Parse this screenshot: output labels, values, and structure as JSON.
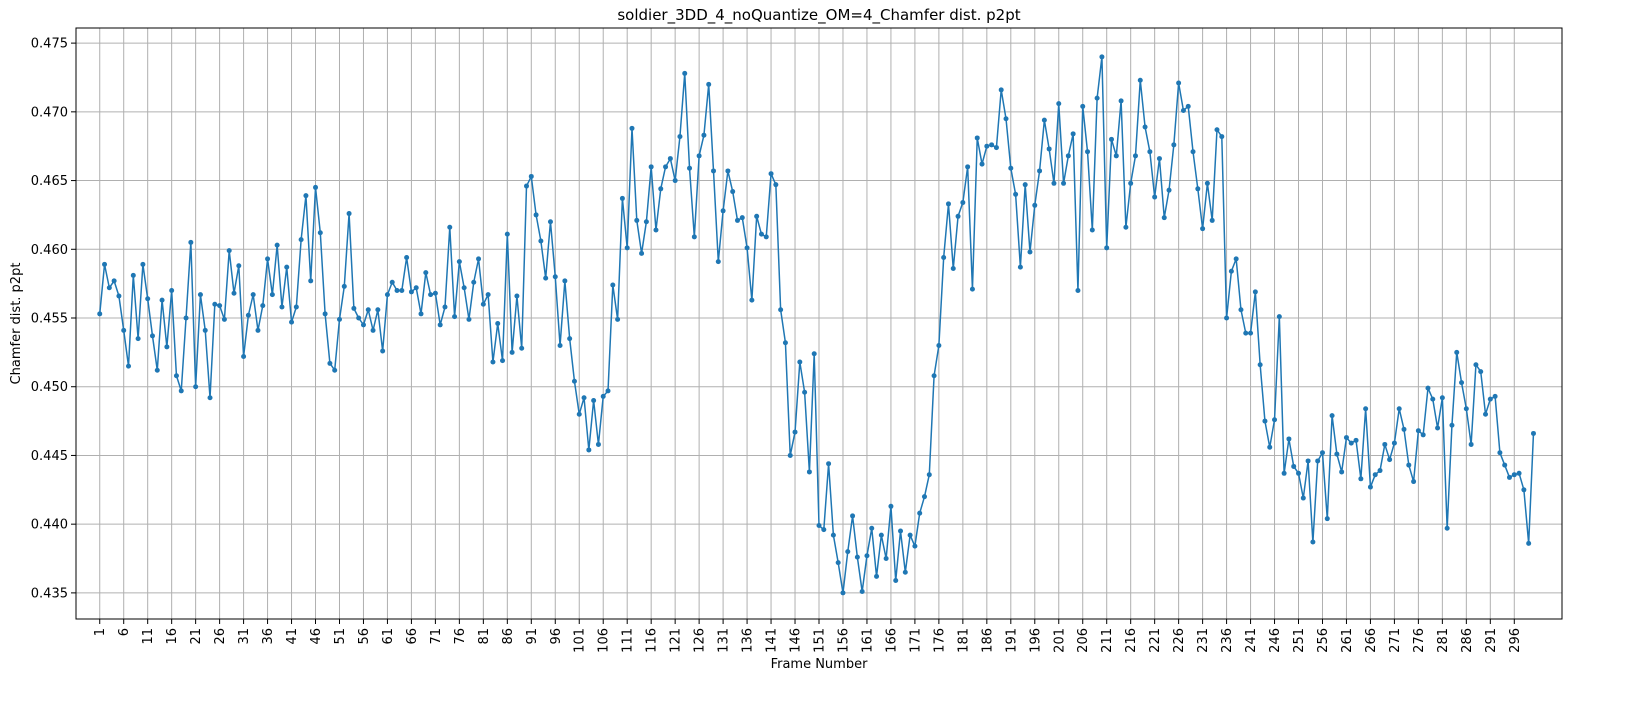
{
  "chart_data": {
    "type": "line",
    "title": "soldier_3DD_4_noQuantize_OM=4_Chamfer dist. p2pt",
    "xlabel": "Frame Number",
    "ylabel": "Chamfer dist. p2pt",
    "x_start": 1,
    "x_ticks": [
      1,
      6,
      11,
      16,
      21,
      26,
      31,
      36,
      41,
      46,
      51,
      56,
      61,
      66,
      71,
      76,
      81,
      86,
      91,
      96,
      101,
      106,
      111,
      116,
      121,
      126,
      131,
      136,
      141,
      146,
      151,
      156,
      161,
      166,
      171,
      176,
      181,
      186,
      191,
      196,
      201,
      206,
      211,
      216,
      221,
      226,
      231,
      236,
      241,
      246,
      251,
      256,
      261,
      266,
      271,
      276,
      281,
      286,
      291,
      296
    ],
    "xlim": [
      -3.95,
      305.95
    ],
    "y_ticks": [
      "0.435",
      "0.440",
      "0.445",
      "0.450",
      "0.455",
      "0.460",
      "0.465",
      "0.470",
      "0.475"
    ],
    "ylim": [
      0.4331,
      0.4761
    ],
    "grid": true,
    "line_color": "#1f77b4",
    "marker": "circle",
    "series": [
      {
        "values": [
          0.4553,
          0.4589,
          0.4572,
          0.4577,
          0.4566,
          0.4541,
          0.4515,
          0.4581,
          0.4535,
          0.4589,
          0.4564,
          0.4537,
          0.4512,
          0.4563,
          0.4529,
          0.457,
          0.4508,
          0.4497,
          0.455,
          0.4605,
          0.45,
          0.4567,
          0.4541,
          0.4492,
          0.456,
          0.4559,
          0.4549,
          0.4599,
          0.4568,
          0.4588,
          0.4522,
          0.4552,
          0.4567,
          0.4541,
          0.4559,
          0.4593,
          0.4567,
          0.4603,
          0.4558,
          0.4587,
          0.4547,
          0.4558,
          0.4607,
          0.4639,
          0.4577,
          0.4645,
          0.4612,
          0.4553,
          0.4517,
          0.4512,
          0.4549,
          0.4573,
          0.4626,
          0.4557,
          0.455,
          0.4545,
          0.4556,
          0.4541,
          0.4556,
          0.4526,
          0.4567,
          0.4576,
          0.457,
          0.457,
          0.4594,
          0.4569,
          0.4572,
          0.4553,
          0.4583,
          0.4567,
          0.4568,
          0.4545,
          0.4558,
          0.4616,
          0.4551,
          0.4591,
          0.4572,
          0.4549,
          0.4576,
          0.4593,
          0.456,
          0.4567,
          0.4518,
          0.4546,
          0.4519,
          0.4611,
          0.4525,
          0.4566,
          0.4528,
          0.4646,
          0.4653,
          0.4625,
          0.4606,
          0.4579,
          0.462,
          0.458,
          0.453,
          0.4577,
          0.4535,
          0.4504,
          0.448,
          0.4492,
          0.4454,
          0.449,
          0.4458,
          0.4493,
          0.4497,
          0.4574,
          0.4549,
          0.4637,
          0.4601,
          0.4688,
          0.4621,
          0.4597,
          0.462,
          0.466,
          0.4614,
          0.4644,
          0.466,
          0.4666,
          0.465,
          0.4682,
          0.4728,
          0.4659,
          0.4609,
          0.4668,
          0.4683,
          0.472,
          0.4657,
          0.4591,
          0.4628,
          0.4657,
          0.4642,
          0.4621,
          0.4623,
          0.4601,
          0.4563,
          0.4624,
          0.4611,
          0.4609,
          0.4655,
          0.4647,
          0.4556,
          0.4532,
          0.445,
          0.4467,
          0.4518,
          0.4496,
          0.4438,
          0.4524,
          0.4399,
          0.4396,
          0.4444,
          0.4392,
          0.4372,
          0.435,
          0.438,
          0.4406,
          0.4376,
          0.4351,
          0.4377,
          0.4397,
          0.4362,
          0.4392,
          0.4375,
          0.4413,
          0.4359,
          0.4395,
          0.4365,
          0.4392,
          0.4384,
          0.4408,
          0.442,
          0.4436,
          0.4508,
          0.453,
          0.4594,
          0.4633,
          0.4586,
          0.4624,
          0.4634,
          0.466,
          0.4571,
          0.4681,
          0.4662,
          0.4675,
          0.4676,
          0.4674,
          0.4716,
          0.4695,
          0.4659,
          0.464,
          0.4587,
          0.4647,
          0.4598,
          0.4632,
          0.4657,
          0.4694,
          0.4673,
          0.4648,
          0.4706,
          0.4648,
          0.4668,
          0.4684,
          0.457,
          0.4704,
          0.4671,
          0.4614,
          0.471,
          0.474,
          0.4601,
          0.468,
          0.4668,
          0.4708,
          0.4616,
          0.4648,
          0.4668,
          0.4723,
          0.4689,
          0.4671,
          0.4638,
          0.4666,
          0.4623,
          0.4643,
          0.4676,
          0.4721,
          0.4701,
          0.4704,
          0.4671,
          0.4644,
          0.4615,
          0.4648,
          0.4621,
          0.4687,
          0.4682,
          0.455,
          0.4584,
          0.4593,
          0.4556,
          0.4539,
          0.4539,
          0.4569,
          0.4516,
          0.4475,
          0.4456,
          0.4476,
          0.4551,
          0.4437,
          0.4462,
          0.4442,
          0.4437,
          0.4419,
          0.4446,
          0.4387,
          0.4446,
          0.4452,
          0.4404,
          0.4479,
          0.4451,
          0.4438,
          0.4463,
          0.4459,
          0.4461,
          0.4433,
          0.4484,
          0.4427,
          0.4436,
          0.4439,
          0.4458,
          0.4447,
          0.4459,
          0.4484,
          0.4469,
          0.4443,
          0.4431,
          0.4468,
          0.4465,
          0.4499,
          0.4491,
          0.447,
          0.4492,
          0.4397,
          0.4472,
          0.4525,
          0.4503,
          0.4484,
          0.4458,
          0.4516,
          0.4511,
          0.448,
          0.4491,
          0.4493,
          0.4452,
          0.4443,
          0.4434,
          0.4436,
          0.4437,
          0.4425,
          0.4386,
          0.4466
        ]
      }
    ]
  }
}
